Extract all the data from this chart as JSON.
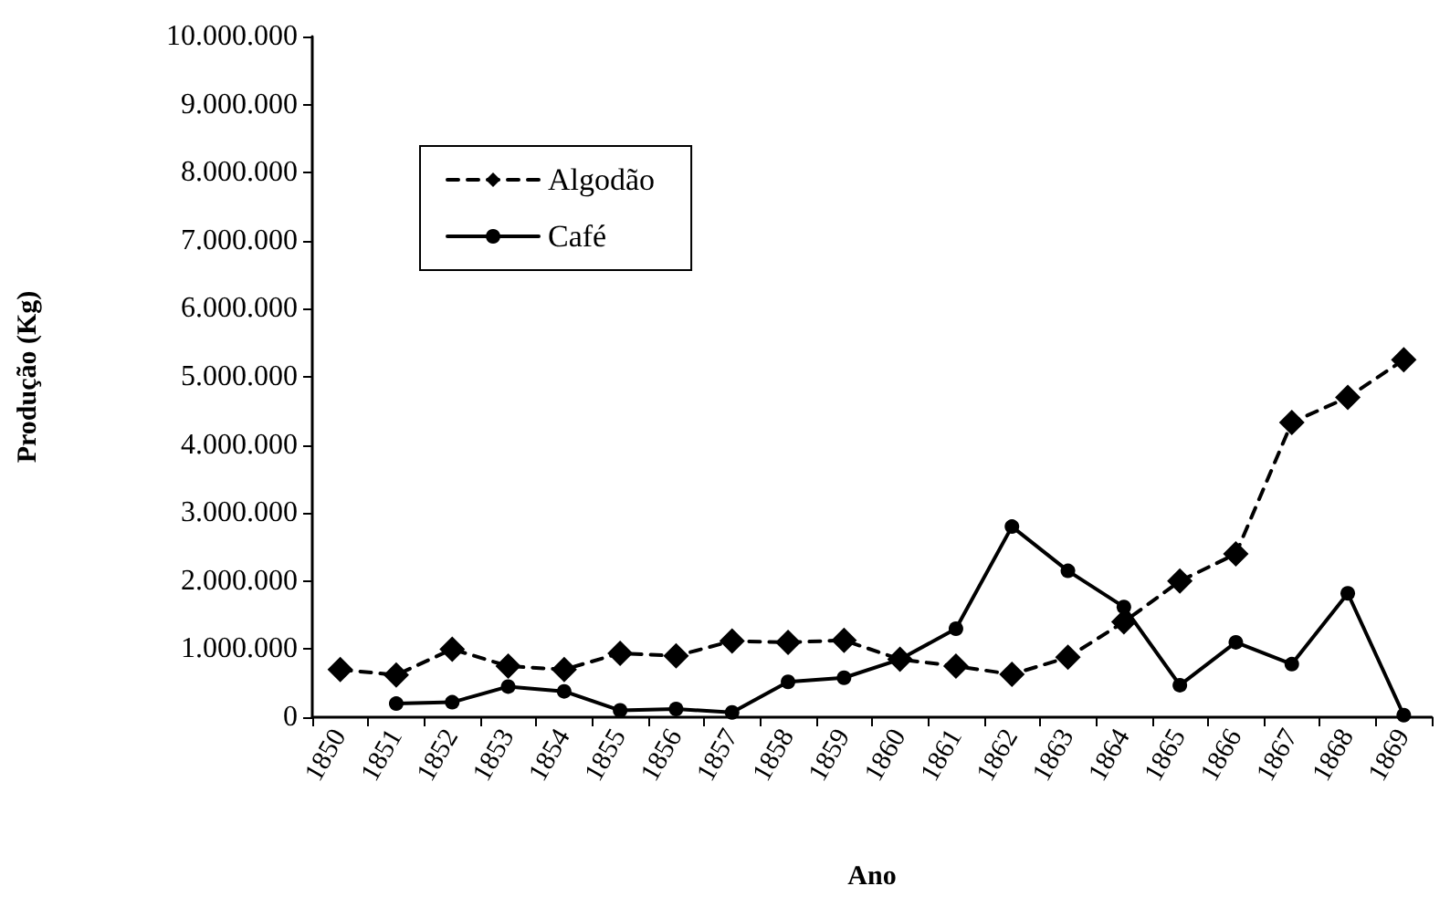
{
  "chart_data": {
    "type": "line",
    "xlabel": "Ano",
    "ylabel": "Produção (Kg)",
    "categories": [
      "1850",
      "1851",
      "1852",
      "1853",
      "1854",
      "1855",
      "1856",
      "1857",
      "1858",
      "1859",
      "1860",
      "1861",
      "1862",
      "1863",
      "1864",
      "1865",
      "1866",
      "1867",
      "1868",
      "1869"
    ],
    "series": [
      {
        "name": "Algodão",
        "color": "#000000",
        "line_style": "dashed",
        "marker": "diamond",
        "values": [
          700000,
          620000,
          1000000,
          750000,
          700000,
          940000,
          900000,
          1120000,
          1100000,
          1130000,
          850000,
          750000,
          630000,
          880000,
          1400000,
          2000000,
          2400000,
          4330000,
          4700000,
          5250000
        ]
      },
      {
        "name": "Café",
        "color": "#000000",
        "line_style": "solid",
        "marker": "circle",
        "values": [
          null,
          200000,
          220000,
          450000,
          380000,
          100000,
          120000,
          70000,
          520000,
          580000,
          850000,
          1300000,
          2800000,
          2150000,
          1620000,
          470000,
          1100000,
          780000,
          1820000,
          30000
        ]
      }
    ],
    "ylim": [
      0,
      10000000
    ],
    "yticks": [
      {
        "value": 0,
        "label": "0"
      },
      {
        "value": 1000000,
        "label": "1.000.000"
      },
      {
        "value": 2000000,
        "label": "2.000.000"
      },
      {
        "value": 3000000,
        "label": "3.000.000"
      },
      {
        "value": 4000000,
        "label": "4.000.000"
      },
      {
        "value": 5000000,
        "label": "5.000.000"
      },
      {
        "value": 6000000,
        "label": "6.000.000"
      },
      {
        "value": 7000000,
        "label": "7.000.000"
      },
      {
        "value": 8000000,
        "label": "8.000.000"
      },
      {
        "value": 9000000,
        "label": "9.000.000"
      },
      {
        "value": 10000000,
        "label": "10.000.000"
      }
    ],
    "grid": false,
    "legend": "top left"
  }
}
